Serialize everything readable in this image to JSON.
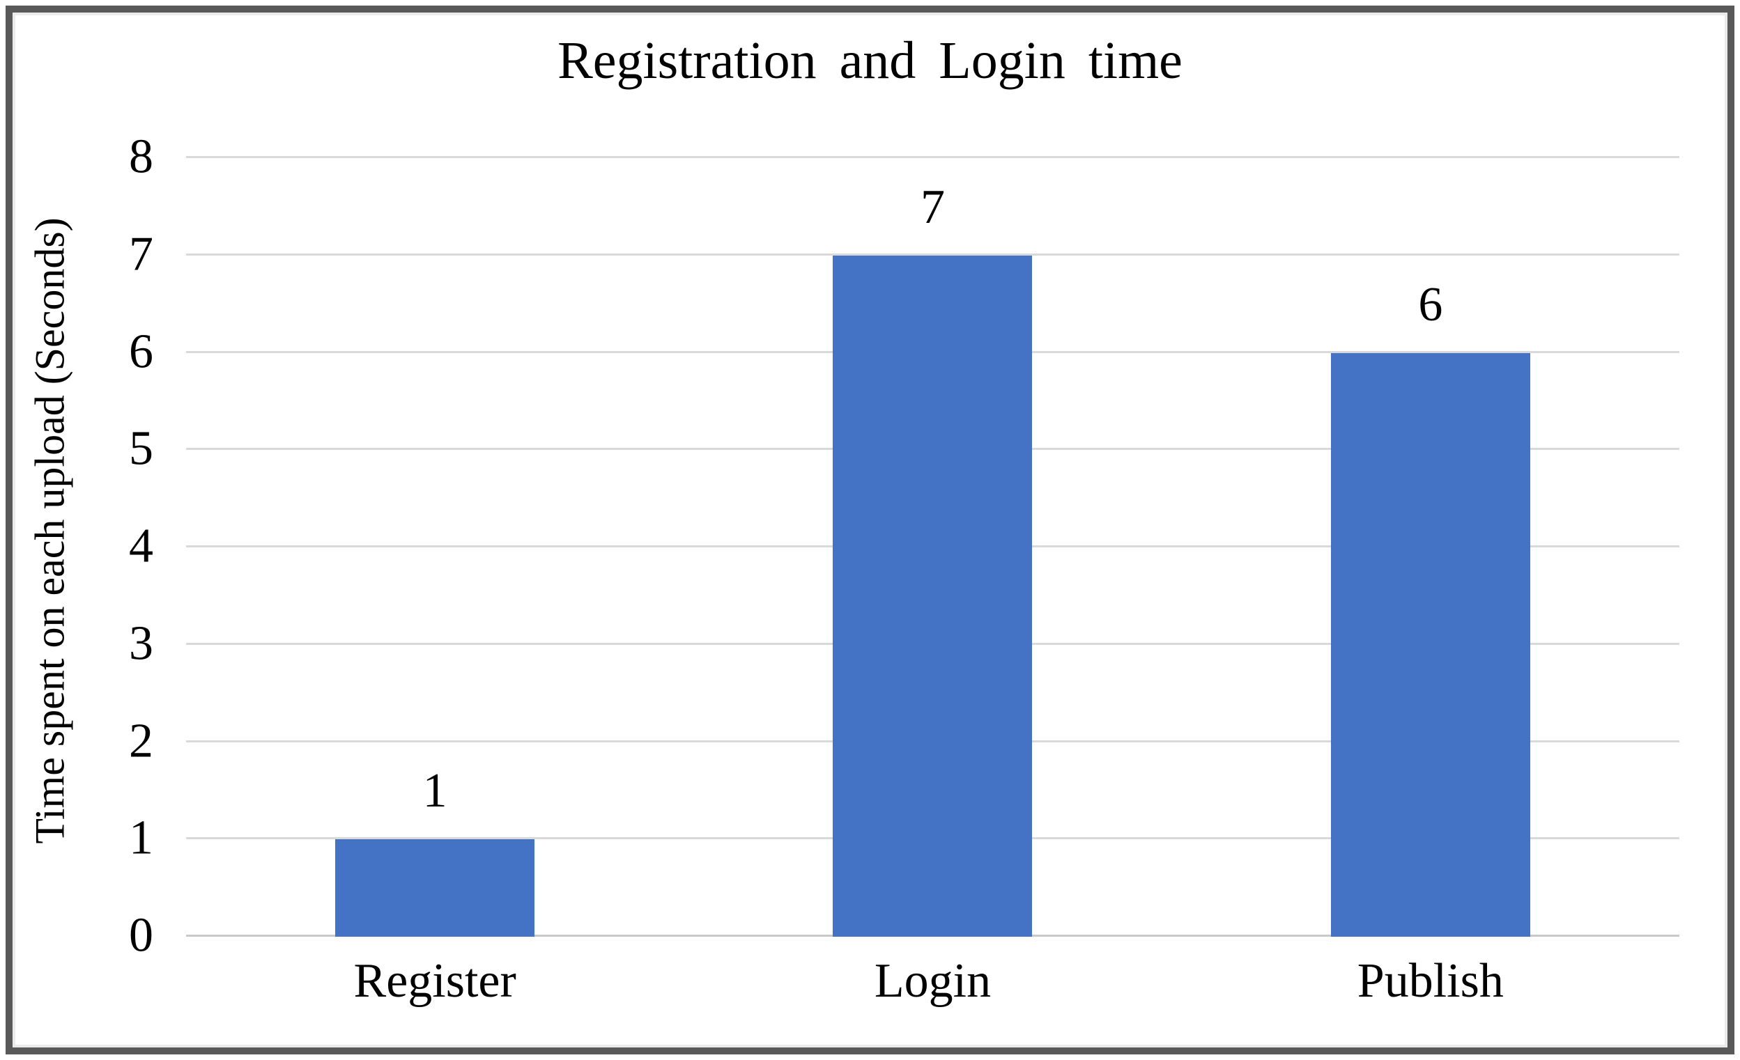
{
  "chart_data": {
    "type": "bar",
    "title": "Registration and Login time",
    "ylabel": "Time spent on each upload (Seconds)",
    "xlabel": "",
    "categories": [
      "Register",
      "Login",
      "Publish"
    ],
    "values": [
      1,
      7,
      6
    ],
    "data_labels": [
      "1",
      "7",
      "6"
    ],
    "yticks": [
      0,
      1,
      2,
      3,
      4,
      5,
      6,
      7,
      8
    ],
    "ylim": [
      0,
      8
    ],
    "grid": true,
    "legend_position": "none",
    "bar_color": "#4472c4",
    "gridline_color": "#d9d9d9",
    "axis_line_color": "#c9c9c9",
    "frame_border_color": "#595959",
    "text_color": "#000000"
  }
}
